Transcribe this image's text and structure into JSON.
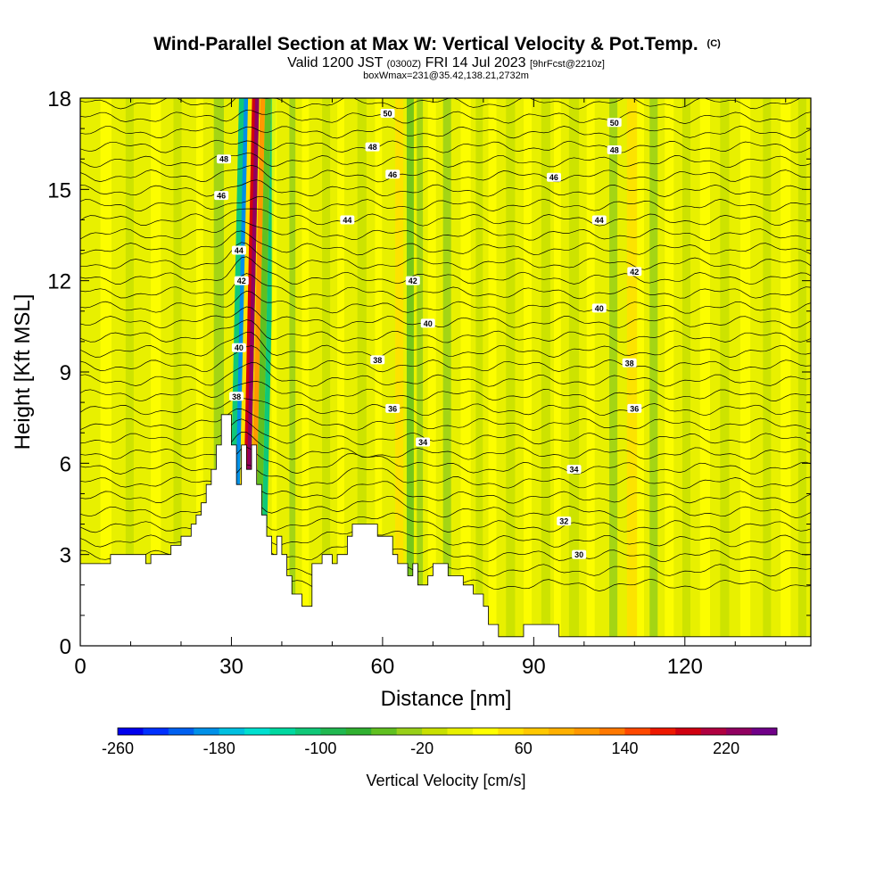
{
  "chart_data": {
    "type": "heatmap",
    "title": "Wind-Parallel Section at Max W: Vertical Velocity & Pot.Temp.",
    "title_mark": "(C)",
    "subtitle_parts": [
      "Valid 1200 JST",
      "(0300Z)",
      "FRI 14 Jul 2023",
      "[9hrFcst@2210z]"
    ],
    "subtitle2": "boxWmax=231@35.42,138.21,2732m",
    "xlabel": "Distance [nm]",
    "ylabel": "Height [Kft MSL]",
    "xlim": [
      0,
      145
    ],
    "ylim": [
      0,
      18
    ],
    "x_ticks": [
      0,
      30,
      60,
      90,
      120
    ],
    "y_ticks": [
      0,
      3,
      6,
      9,
      12,
      15,
      18
    ],
    "colorbar": {
      "label": "Vertical Velocity [cm/s]",
      "min": -260,
      "max": 260,
      "step": 20,
      "tick_values": [
        -260,
        -180,
        -100,
        -20,
        60,
        140,
        220
      ],
      "colors": [
        "#0000ee",
        "#0030ff",
        "#0060f0",
        "#0090e8",
        "#00c0e0",
        "#00e0d0",
        "#00d8a0",
        "#10c878",
        "#20b850",
        "#30b030",
        "#60c020",
        "#98d018",
        "#c8e000",
        "#e8f000",
        "#ffff00",
        "#ffe000",
        "#ffc800",
        "#ffb000",
        "#ff9800",
        "#ff7800",
        "#ff4800",
        "#ee1800",
        "#d00010",
        "#b00040",
        "#900060",
        "#700088"
      ]
    },
    "updraft_core": {
      "x": 32,
      "w_max": 231,
      "position_label": "35.42,138.21,2732m"
    },
    "theta_labels": [
      {
        "x": 61,
        "y": 17.5,
        "v": "50"
      },
      {
        "x": 106,
        "y": 17.2,
        "v": "50"
      },
      {
        "x": 58,
        "y": 16.4,
        "v": "48"
      },
      {
        "x": 106,
        "y": 16.3,
        "v": "48"
      },
      {
        "x": 28.5,
        "y": 16.0,
        "v": "48"
      },
      {
        "x": 28,
        "y": 14.8,
        "v": "46"
      },
      {
        "x": 62,
        "y": 15.5,
        "v": "46"
      },
      {
        "x": 94,
        "y": 15.4,
        "v": "46"
      },
      {
        "x": 53,
        "y": 14.0,
        "v": "44"
      },
      {
        "x": 31.5,
        "y": 13.0,
        "v": "44"
      },
      {
        "x": 103,
        "y": 14.0,
        "v": "44"
      },
      {
        "x": 66,
        "y": 12.0,
        "v": "42"
      },
      {
        "x": 32,
        "y": 12.0,
        "v": "42"
      },
      {
        "x": 110,
        "y": 12.3,
        "v": "42"
      },
      {
        "x": 69,
        "y": 10.6,
        "v": "40"
      },
      {
        "x": 31.5,
        "y": 9.8,
        "v": "40"
      },
      {
        "x": 103,
        "y": 11.1,
        "v": "40"
      },
      {
        "x": 59,
        "y": 9.4,
        "v": "38"
      },
      {
        "x": 31,
        "y": 8.2,
        "v": "38"
      },
      {
        "x": 109,
        "y": 9.3,
        "v": "38"
      },
      {
        "x": 62,
        "y": 7.8,
        "v": "36"
      },
      {
        "x": 110,
        "y": 7.8,
        "v": "36"
      },
      {
        "x": 68,
        "y": 6.7,
        "v": "34"
      },
      {
        "x": 98,
        "y": 5.8,
        "v": "34"
      },
      {
        "x": 96,
        "y": 4.1,
        "v": "32"
      },
      {
        "x": 99,
        "y": 3.0,
        "v": "30"
      }
    ],
    "terrain": [
      [
        0,
        2.7
      ],
      [
        6,
        2.7
      ],
      [
        6,
        3.0
      ],
      [
        13,
        3.0
      ],
      [
        13,
        2.7
      ],
      [
        14,
        2.7
      ],
      [
        14,
        3.0
      ],
      [
        18,
        3.0
      ],
      [
        18,
        3.3
      ],
      [
        20,
        3.3
      ],
      [
        20,
        3.6
      ],
      [
        22,
        3.6
      ],
      [
        22,
        4.0
      ],
      [
        23,
        4.0
      ],
      [
        23,
        4.3
      ],
      [
        24,
        4.3
      ],
      [
        24,
        4.7
      ],
      [
        25,
        4.7
      ],
      [
        25,
        5.3
      ],
      [
        26,
        5.3
      ],
      [
        26,
        5.8
      ],
      [
        27,
        5.8
      ],
      [
        27,
        6.6
      ],
      [
        28,
        6.6
      ],
      [
        28,
        7.6
      ],
      [
        30,
        7.6
      ],
      [
        30,
        6.6
      ],
      [
        31,
        6.6
      ],
      [
        31,
        5.3
      ],
      [
        32,
        5.3
      ],
      [
        32,
        6.6
      ],
      [
        33,
        6.6
      ],
      [
        33,
        5.8
      ],
      [
        34,
        5.8
      ],
      [
        34,
        6.6
      ],
      [
        35,
        6.6
      ],
      [
        35,
        5.3
      ],
      [
        36,
        5.3
      ],
      [
        36,
        4.3
      ],
      [
        37,
        4.3
      ],
      [
        37,
        3.6
      ],
      [
        38,
        3.6
      ],
      [
        38,
        3.0
      ],
      [
        39,
        3.0
      ],
      [
        39,
        3.6
      ],
      [
        40,
        3.6
      ],
      [
        40,
        3.0
      ],
      [
        41,
        3.0
      ],
      [
        41,
        2.3
      ],
      [
        42,
        2.3
      ],
      [
        42,
        1.7
      ],
      [
        44,
        1.7
      ],
      [
        44,
        1.3
      ],
      [
        46,
        1.3
      ],
      [
        46,
        2.7
      ],
      [
        48,
        2.7
      ],
      [
        48,
        3.0
      ],
      [
        50,
        3.0
      ],
      [
        50,
        2.7
      ],
      [
        51,
        2.7
      ],
      [
        51,
        3.0
      ],
      [
        53,
        3.0
      ],
      [
        53,
        3.6
      ],
      [
        54,
        3.6
      ],
      [
        54,
        4.0
      ],
      [
        59,
        4.0
      ],
      [
        59,
        3.6
      ],
      [
        62,
        3.6
      ],
      [
        62,
        3.0
      ],
      [
        63,
        3.0
      ],
      [
        63,
        2.7
      ],
      [
        65,
        2.7
      ],
      [
        65,
        2.3
      ],
      [
        66,
        2.3
      ],
      [
        66,
        2.7
      ],
      [
        67,
        2.7
      ],
      [
        67,
        2.0
      ],
      [
        69,
        2.0
      ],
      [
        69,
        2.3
      ],
      [
        70,
        2.3
      ],
      [
        70,
        2.7
      ],
      [
        73,
        2.7
      ],
      [
        73,
        2.3
      ],
      [
        76,
        2.3
      ],
      [
        76,
        2.0
      ],
      [
        78,
        2.0
      ],
      [
        78,
        1.7
      ],
      [
        80,
        1.7
      ],
      [
        80,
        1.3
      ],
      [
        81,
        1.3
      ],
      [
        81,
        0.7
      ],
      [
        83,
        0.7
      ],
      [
        83,
        0.3
      ],
      [
        88,
        0.3
      ],
      [
        88,
        0.7
      ],
      [
        95,
        0.7
      ],
      [
        95,
        0.3
      ],
      [
        101,
        0.3
      ],
      [
        101,
        0.3
      ],
      [
        145,
        0.3
      ]
    ],
    "w_bands": [
      {
        "x": 30.0,
        "w": 1.2,
        "value": -200
      },
      {
        "x": 29.2,
        "w": 1.0,
        "value": -120
      },
      {
        "x": 31.0,
        "w": 0.8,
        "value": 40
      },
      {
        "x": 31.8,
        "w": 1.4,
        "value": 180
      },
      {
        "x": 32.4,
        "w": 0.8,
        "value": 231
      },
      {
        "x": 33.4,
        "w": 1.0,
        "value": 100
      },
      {
        "x": 34.4,
        "w": 1.2,
        "value": -60
      },
      {
        "x": 35.6,
        "w": 1.0,
        "value": -120
      },
      {
        "x": 36.8,
        "w": 1.2,
        "value": 0
      },
      {
        "x": 38.0,
        "w": 1.0,
        "value": 30
      },
      {
        "x": 26.5,
        "w": 2.0,
        "value": -30
      },
      {
        "x": 23.0,
        "w": 1.4,
        "value": 20
      },
      {
        "x": 18.5,
        "w": 1.6,
        "value": -10
      },
      {
        "x": 14.0,
        "w": 2.0,
        "value": 25
      },
      {
        "x": 9.0,
        "w": 1.6,
        "value": -15
      },
      {
        "x": 4.0,
        "w": 2.2,
        "value": 20
      },
      {
        "x": 41.5,
        "w": 1.2,
        "value": -25
      },
      {
        "x": 44.0,
        "w": 1.4,
        "value": 25
      },
      {
        "x": 48.0,
        "w": 1.6,
        "value": -15
      },
      {
        "x": 51.0,
        "w": 1.4,
        "value": 20
      },
      {
        "x": 55.0,
        "w": 1.8,
        "value": -20
      },
      {
        "x": 58.5,
        "w": 1.4,
        "value": 20
      },
      {
        "x": 62.5,
        "w": 1.6,
        "value": 45
      },
      {
        "x": 64.8,
        "w": 1.4,
        "value": -50
      },
      {
        "x": 66.8,
        "w": 1.2,
        "value": -30
      },
      {
        "x": 69.0,
        "w": 1.6,
        "value": 25
      },
      {
        "x": 72.0,
        "w": 1.6,
        "value": -25
      },
      {
        "x": 75.5,
        "w": 2.0,
        "value": 20
      },
      {
        "x": 78.5,
        "w": 1.4,
        "value": -20
      },
      {
        "x": 81.0,
        "w": 1.6,
        "value": 25
      },
      {
        "x": 84.5,
        "w": 1.8,
        "value": -15
      },
      {
        "x": 88.0,
        "w": 1.6,
        "value": 20
      },
      {
        "x": 91.5,
        "w": 1.8,
        "value": -20
      },
      {
        "x": 94.0,
        "w": 1.4,
        "value": 25
      },
      {
        "x": 97.0,
        "w": 2.0,
        "value": -15
      },
      {
        "x": 100.5,
        "w": 1.6,
        "value": 20
      },
      {
        "x": 105.0,
        "w": 1.6,
        "value": -40
      },
      {
        "x": 108.5,
        "w": 2.0,
        "value": 40
      },
      {
        "x": 110.5,
        "w": 1.4,
        "value": 30
      },
      {
        "x": 113.0,
        "w": 1.6,
        "value": -35
      },
      {
        "x": 116.0,
        "w": 1.8,
        "value": 20
      },
      {
        "x": 119.5,
        "w": 1.6,
        "value": -15
      },
      {
        "x": 123.0,
        "w": 2.0,
        "value": 20
      },
      {
        "x": 127.0,
        "w": 1.8,
        "value": -15
      },
      {
        "x": 131.0,
        "w": 2.0,
        "value": 20
      },
      {
        "x": 135.5,
        "w": 1.6,
        "value": -15
      },
      {
        "x": 139.0,
        "w": 2.0,
        "value": 25
      },
      {
        "x": 142.5,
        "w": 1.6,
        "value": -10
      }
    ],
    "background_w": 0
  }
}
